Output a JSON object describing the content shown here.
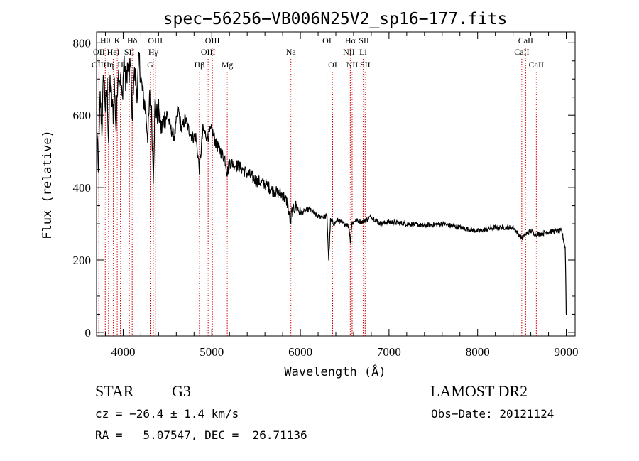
{
  "chart_data": {
    "type": "line",
    "title": "spec−56256−VB006N25V2_sp16−177.fits",
    "xlabel": "Wavelength (Å)",
    "ylabel": "Flux (relative)",
    "xlim": [
      3700,
      9100
    ],
    "ylim": [
      -10,
      830
    ],
    "xticks": [
      4000,
      5000,
      6000,
      7000,
      8000,
      9000
    ],
    "yticks": [
      0,
      200,
      400,
      600,
      800
    ],
    "grid": false,
    "legend": "none",
    "line_color": "#000000",
    "marker_color": "#cc0000",
    "series": [
      {
        "x": [
          3700,
          3720,
          3740,
          3760,
          3780,
          3800,
          3820,
          3835,
          3850,
          3870,
          3889,
          3900,
          3920,
          3940,
          3970,
          3990,
          4010,
          4030,
          4050,
          4070,
          4085,
          4102,
          4120,
          4140,
          4160,
          4180,
          4200,
          4220,
          4250,
          4280,
          4300,
          4320,
          4340,
          4360,
          4380,
          4400,
          4430,
          4460,
          4500,
          4540,
          4580,
          4620,
          4660,
          4700,
          4740,
          4780,
          4820,
          4861,
          4900,
          4950,
          5000,
          5050,
          5100,
          5150,
          5175,
          5200,
          5300,
          5400,
          5500,
          5600,
          5700,
          5800,
          5850,
          5890,
          5900,
          5950,
          6000,
          6100,
          6200,
          6250,
          6300,
          6320,
          6340,
          6380,
          6420,
          6480,
          6520,
          6550,
          6563,
          6580,
          6620,
          6700,
          6800,
          6900,
          7000,
          7200,
          7400,
          7600,
          7800,
          8000,
          8200,
          8400,
          8498,
          8542,
          8600,
          8662,
          8750,
          8850,
          8950,
          8990,
          9000
        ],
        "y": [
          600,
          430,
          650,
          560,
          720,
          620,
          680,
          520,
          700,
          640,
          600,
          690,
          560,
          720,
          700,
          640,
          760,
          680,
          740,
          700,
          760,
          560,
          720,
          700,
          660,
          760,
          700,
          660,
          620,
          540,
          650,
          600,
          440,
          630,
          600,
          610,
          560,
          590,
          600,
          560,
          540,
          620,
          560,
          590,
          560,
          540,
          540,
          450,
          560,
          540,
          560,
          520,
          500,
          480,
          440,
          470,
          460,
          440,
          420,
          410,
          390,
          380,
          360,
          300,
          330,
          350,
          330,
          340,
          320,
          320,
          320,
          200,
          310,
          300,
          310,
          300,
          300,
          290,
          250,
          300,
          310,
          305,
          320,
          300,
          305,
          300,
          295,
          300,
          290,
          280,
          290,
          290,
          260,
          270,
          280,
          270,
          275,
          280,
          280,
          230,
          50
        ]
      }
    ],
    "lines": [
      {
        "label": "Hθ",
        "x": 3798,
        "row": 0
      },
      {
        "label": "OII",
        "x": 3727,
        "row": 1
      },
      {
        "label": "OIII",
        "x": 3726,
        "row": 2
      },
      {
        "label": "Hη",
        "x": 3835,
        "row": 2
      },
      {
        "label": "HeI",
        "x": 3889,
        "row": 1
      },
      {
        "label": "K",
        "x": 3933,
        "row": 0
      },
      {
        "label": "H",
        "x": 3969,
        "row": 2
      },
      {
        "label": "SII",
        "x": 4070,
        "row": 1
      },
      {
        "label": "Hδ",
        "x": 4102,
        "row": 0
      },
      {
        "label": "OIII",
        "x": 4363,
        "row": 0
      },
      {
        "label": "Hγ",
        "x": 4340,
        "row": 1
      },
      {
        "label": "G",
        "x": 4305,
        "row": 2
      },
      {
        "label": "Hβ",
        "x": 4861,
        "row": 2
      },
      {
        "label": "OIII",
        "x": 5007,
        "row": 0
      },
      {
        "label": "OIII",
        "x": 4959,
        "row": 1
      },
      {
        "label": "Mg",
        "x": 5175,
        "row": 2
      },
      {
        "label": "Na",
        "x": 5893,
        "row": 1
      },
      {
        "label": "OI",
        "x": 6300,
        "row": 0
      },
      {
        "label": "OI",
        "x": 6364,
        "row": 2
      },
      {
        "label": "Hα",
        "x": 6563,
        "row": 0
      },
      {
        "label": "NII",
        "x": 6548,
        "row": 1
      },
      {
        "label": "NII",
        "x": 6584,
        "row": 2
      },
      {
        "label": "SII",
        "x": 6717,
        "row": 0
      },
      {
        "label": "Li",
        "x": 6708,
        "row": 1
      },
      {
        "label": "SII",
        "x": 6731,
        "row": 2
      },
      {
        "label": "CaII",
        "x": 8542,
        "row": 0
      },
      {
        "label": "CaII",
        "x": 8498,
        "row": 1
      },
      {
        "label": "CaII",
        "x": 8662,
        "row": 2
      }
    ]
  },
  "info": {
    "object_class": "STAR",
    "subclass": "G3",
    "survey": "LAMOST DR2",
    "cz": "cz = −26.4 ± 1.4 km/s",
    "obs_date": "Obs−Date: 20121124",
    "coords": "RA =   5.07547, DEC =  26.71136"
  }
}
